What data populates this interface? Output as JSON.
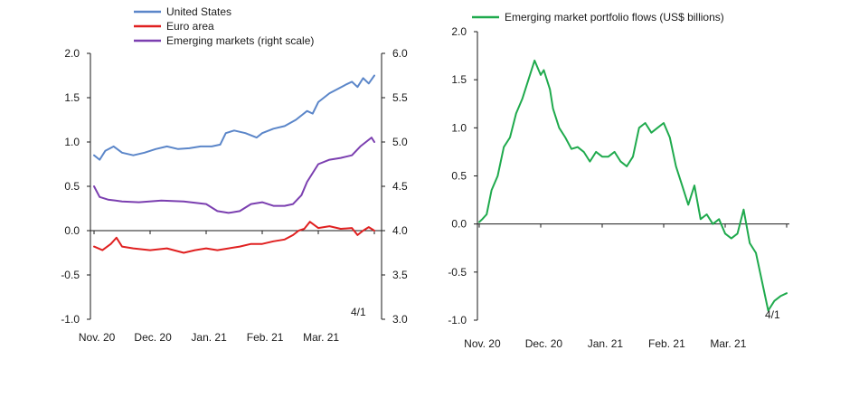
{
  "chart_data": [
    {
      "type": "line",
      "annotation": "4/1",
      "x_ticks": [
        "Nov. 20",
        "Dec. 20",
        "Jan. 21",
        "Feb. 21",
        "Mar. 21"
      ],
      "ylim": [
        -1.0,
        2.0
      ],
      "y_ticks": [
        "-1.0",
        "-0.5",
        "0.0",
        "0.5",
        "1.0",
        "1.5",
        "2.0"
      ],
      "y2lim": [
        3.0,
        6.0
      ],
      "y2_ticks": [
        "3.0",
        "3.5",
        "4.0",
        "4.5",
        "5.0",
        "5.5",
        "6.0"
      ],
      "legend_position": "top",
      "x_unit_note": "months since Nov. 20",
      "series": [
        {
          "name": "United States",
          "color": "#5b86c9",
          "axis": "left",
          "x": [
            0.0,
            0.1,
            0.2,
            0.35,
            0.5,
            0.7,
            0.9,
            1.1,
            1.3,
            1.5,
            1.7,
            1.9,
            2.1,
            2.25,
            2.35,
            2.5,
            2.7,
            2.9,
            3.0,
            3.2,
            3.4,
            3.6,
            3.7,
            3.8,
            3.9,
            4.0,
            4.1,
            4.2,
            4.35,
            4.5,
            4.6,
            4.7,
            4.8,
            4.9,
            5.0
          ],
          "values": [
            0.85,
            0.8,
            0.9,
            0.95,
            0.88,
            0.85,
            0.88,
            0.92,
            0.95,
            0.92,
            0.93,
            0.95,
            0.95,
            0.97,
            1.1,
            1.13,
            1.1,
            1.05,
            1.1,
            1.15,
            1.18,
            1.25,
            1.3,
            1.35,
            1.32,
            1.45,
            1.5,
            1.55,
            1.6,
            1.65,
            1.68,
            1.62,
            1.72,
            1.66,
            1.75
          ]
        },
        {
          "name": "Euro area",
          "color": "#e02020",
          "axis": "left",
          "x": [
            0.0,
            0.15,
            0.3,
            0.4,
            0.5,
            0.7,
            1.0,
            1.3,
            1.6,
            1.8,
            2.0,
            2.2,
            2.4,
            2.6,
            2.8,
            3.0,
            3.2,
            3.4,
            3.55,
            3.65,
            3.75,
            3.85,
            4.0,
            4.2,
            4.4,
            4.6,
            4.7,
            4.8,
            4.9,
            5.0
          ],
          "values": [
            -0.18,
            -0.22,
            -0.15,
            -0.08,
            -0.18,
            -0.2,
            -0.22,
            -0.2,
            -0.25,
            -0.22,
            -0.2,
            -0.22,
            -0.2,
            -0.18,
            -0.15,
            -0.15,
            -0.12,
            -0.1,
            -0.05,
            0.0,
            0.02,
            0.1,
            0.03,
            0.05,
            0.02,
            0.03,
            -0.05,
            0.0,
            0.04,
            0.0
          ]
        },
        {
          "name": "Emerging markets (right scale)",
          "color": "#7b3fb0",
          "axis": "right",
          "x": [
            0.0,
            0.1,
            0.25,
            0.5,
            0.8,
            1.2,
            1.6,
            2.0,
            2.2,
            2.4,
            2.6,
            2.8,
            3.0,
            3.2,
            3.4,
            3.55,
            3.7,
            3.8,
            4.0,
            4.2,
            4.4,
            4.6,
            4.75,
            4.85,
            4.95,
            5.0
          ],
          "values": [
            4.5,
            4.38,
            4.35,
            4.33,
            4.32,
            4.34,
            4.33,
            4.3,
            4.22,
            4.2,
            4.22,
            4.3,
            4.32,
            4.28,
            4.28,
            4.3,
            4.4,
            4.55,
            4.75,
            4.8,
            4.82,
            4.85,
            4.95,
            5.0,
            5.05,
            5.0
          ]
        }
      ]
    },
    {
      "type": "line",
      "annotation": "4/1",
      "x_ticks": [
        "Nov. 20",
        "Dec. 20",
        "Jan. 21",
        "Feb. 21",
        "Mar. 21"
      ],
      "ylim": [
        -1.0,
        2.0
      ],
      "y_ticks": [
        "-1.0",
        "-0.5",
        "0.0",
        "0.5",
        "1.0",
        "1.5",
        "2.0"
      ],
      "legend_position": "top",
      "x_unit_note": "months since Nov. 20",
      "series": [
        {
          "name": "Emerging market portfolio flows (US$ billions)",
          "color": "#1faa4d",
          "axis": "left",
          "x": [
            0.0,
            0.05,
            0.12,
            0.2,
            0.3,
            0.4,
            0.5,
            0.6,
            0.7,
            0.8,
            0.9,
            1.0,
            1.05,
            1.15,
            1.2,
            1.3,
            1.4,
            1.5,
            1.6,
            1.7,
            1.8,
            1.9,
            2.0,
            2.1,
            2.2,
            2.3,
            2.4,
            2.5,
            2.6,
            2.7,
            2.8,
            2.9,
            3.0,
            3.1,
            3.2,
            3.3,
            3.4,
            3.5,
            3.6,
            3.7,
            3.8,
            3.9,
            4.0,
            4.1,
            4.2,
            4.3,
            4.4,
            4.5,
            4.6,
            4.7,
            4.8,
            4.9,
            5.0
          ],
          "values": [
            0.02,
            0.05,
            0.1,
            0.35,
            0.5,
            0.8,
            0.9,
            1.15,
            1.3,
            1.5,
            1.7,
            1.55,
            1.6,
            1.4,
            1.2,
            1.0,
            0.9,
            0.78,
            0.8,
            0.75,
            0.65,
            0.75,
            0.7,
            0.7,
            0.75,
            0.65,
            0.6,
            0.7,
            1.0,
            1.05,
            0.95,
            1.0,
            1.05,
            0.9,
            0.6,
            0.4,
            0.2,
            0.4,
            0.05,
            0.1,
            0.0,
            0.05,
            -0.1,
            -0.15,
            -0.1,
            0.15,
            -0.2,
            -0.3,
            -0.6,
            -0.9,
            -0.8,
            -0.75,
            -0.72
          ]
        }
      ]
    }
  ]
}
